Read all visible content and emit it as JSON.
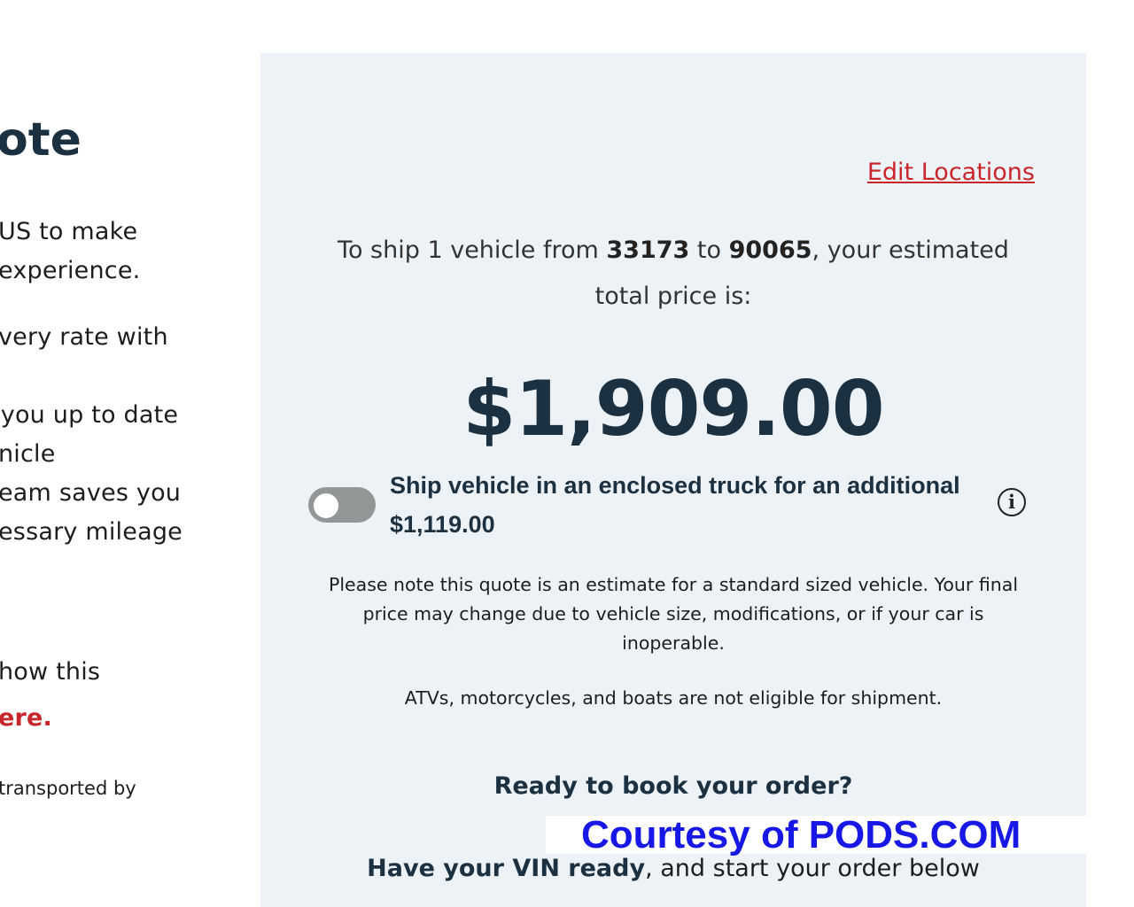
{
  "left": {
    "title_fragment": "ote",
    "lines": [
      "US to make",
      "experience.",
      "very rate with",
      " you up to date",
      "nicle",
      "eam saves you",
      "essary mileage",
      "how this"
    ],
    "link_fragment": "ere.",
    "footer_fragment": "transported by"
  },
  "quote": {
    "edit_locations": "Edit Locations",
    "ship_prefix": "To ship 1 vehicle from ",
    "from_zip": "33173",
    "ship_mid": " to ",
    "to_zip": "90065",
    "ship_suffix": ", your estimated total price is:",
    "price": "$1,909.00",
    "enclosed_label": "Ship vehicle in an enclosed truck for an additional $1,119.00",
    "enclosed_toggle_on": false,
    "info_icon": "i",
    "note": "Please note this quote is an estimate for a standard sized vehicle. Your final price may change due to vehicle size, modifications, or if your car is inoperable.",
    "ineligible": "ATVs, motorcycles, and boats are not eligible for shipment.",
    "ready": "Ready to book your order?",
    "vin_bold": "Have your VIN ready",
    "vin_rest": ", and start your order below"
  },
  "watermark": "Courtesy of PODS.COM",
  "colors": {
    "accent_red": "#c8262b",
    "navy": "#1b3040",
    "panel": "#edf2f7"
  }
}
